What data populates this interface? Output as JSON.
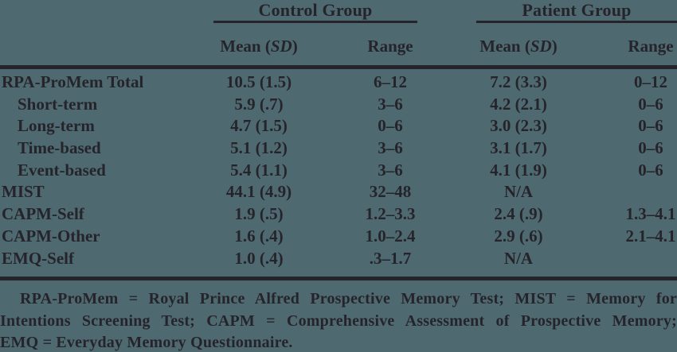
{
  "colors": {
    "background": "#4e6970",
    "ink": "#26242b"
  },
  "table": {
    "groups": {
      "control": {
        "label": "Control Group"
      },
      "patient": {
        "label": "Patient Group"
      }
    },
    "subheaders": {
      "mean_prefix": "Mean (",
      "sd": "SD",
      "mean_suffix": ")",
      "range": "Range"
    },
    "rows": [
      {
        "label": "RPA-ProMem Total",
        "control_mean": "10.5 (1.5)",
        "control_range": "6–12",
        "patient_mean": "7.2 (3.3)",
        "patient_range": "0–12"
      },
      {
        "label": "Short-term",
        "control_mean": "5.9 (.7)",
        "control_range": "3–6",
        "patient_mean": "4.2 (2.1)",
        "patient_range": "0–6"
      },
      {
        "label": "Long-term",
        "control_mean": "4.7 (1.5)",
        "control_range": "0–6",
        "patient_mean": "3.0 (2.3)",
        "patient_range": "0–6"
      },
      {
        "label": "Time-based",
        "control_mean": "5.1 (1.2)",
        "control_range": "3–6",
        "patient_mean": "3.1 (1.7)",
        "patient_range": "0–6"
      },
      {
        "label": "Event-based",
        "control_mean": "5.4 (1.1)",
        "control_range": "3–6",
        "patient_mean": "4.1 (1.9)",
        "patient_range": "0–6"
      },
      {
        "label": "MIST",
        "control_mean": "44.1 (4.9)",
        "control_range": "32–48",
        "patient_mean": "N/A",
        "patient_range": ""
      },
      {
        "label": "CAPM-Self",
        "control_mean": "1.9 (.5)",
        "control_range": "1.2–3.3",
        "patient_mean": "2.4 (.9)",
        "patient_range": "1.3–4.1"
      },
      {
        "label": "CAPM-Other",
        "control_mean": "1.6 (.4)",
        "control_range": "1.0–2.4",
        "patient_mean": "2.9 (.6)",
        "patient_range": "2.1–4.1"
      },
      {
        "label": "EMQ-Self",
        "control_mean": "1.0 (.4)",
        "control_range": ".3–1.7",
        "patient_mean": "N/A",
        "patient_range": ""
      }
    ]
  },
  "footnote": {
    "lines": [
      "RPA-ProMem = Royal Prince Alfred Prospective Memory Test; MIST = Memory for",
      "Intentions Screening Test; CAPM = Comprehensive Assessment of Prospective Memory;",
      "EMQ = Everyday Memory Questionnaire."
    ]
  }
}
